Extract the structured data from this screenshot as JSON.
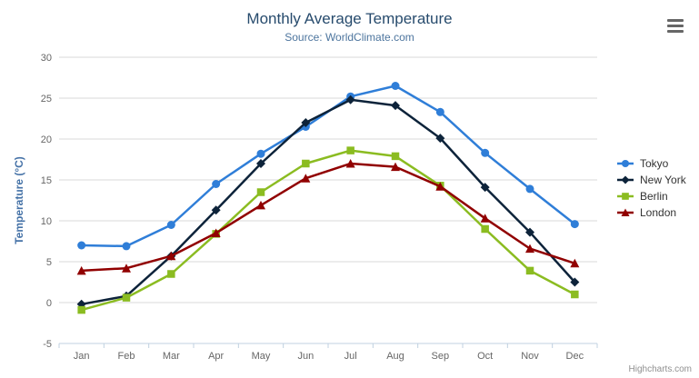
{
  "chart_data": {
    "type": "line",
    "title": "Monthly Average Temperature",
    "subtitle": "Source: WorldClimate.com",
    "categories": [
      "Jan",
      "Feb",
      "Mar",
      "Apr",
      "May",
      "Jun",
      "Jul",
      "Aug",
      "Sep",
      "Oct",
      "Nov",
      "Dec"
    ],
    "xlabel": "",
    "ylabel": "Temperature (°C)",
    "ylim": [
      -5,
      30
    ],
    "yticks": [
      -5,
      0,
      5,
      10,
      15,
      20,
      25,
      30
    ],
    "grid": "horizontal-only",
    "legend_position": "right",
    "series": [
      {
        "name": "Tokyo",
        "color": "#2f7ed8",
        "marker": "circle",
        "values": [
          7.0,
          6.9,
          9.5,
          14.5,
          18.2,
          21.5,
          25.2,
          26.5,
          23.3,
          18.3,
          13.9,
          9.6
        ]
      },
      {
        "name": "New York",
        "color": "#0d233a",
        "marker": "diamond",
        "values": [
          -0.2,
          0.8,
          5.7,
          11.3,
          17.0,
          22.0,
          24.8,
          24.1,
          20.1,
          14.1,
          8.6,
          2.5
        ]
      },
      {
        "name": "Berlin",
        "color": "#8bbc21",
        "marker": "square",
        "values": [
          -0.9,
          0.6,
          3.5,
          8.4,
          13.5,
          17.0,
          18.6,
          17.9,
          14.3,
          9.0,
          3.9,
          1.0
        ]
      },
      {
        "name": "London",
        "color": "#910000",
        "marker": "triangle",
        "values": [
          3.9,
          4.2,
          5.7,
          8.5,
          11.9,
          15.2,
          17.0,
          16.6,
          14.2,
          10.3,
          6.6,
          4.8
        ]
      }
    ]
  },
  "credits": {
    "label": "Highcharts.com"
  },
  "icons": {
    "context_menu": "hamburger-icon"
  },
  "colors": {
    "background": "#ffffff",
    "title": "#274b6d",
    "subtitle": "#4d759e",
    "yaxis_title": "#4572a7",
    "axis_labels": "#666666",
    "grid_line": "#d8d8d8",
    "axis_line": "#c0d0e0",
    "legend_text": "#333333",
    "credits": "#909090",
    "menu_icon": "#666666"
  }
}
